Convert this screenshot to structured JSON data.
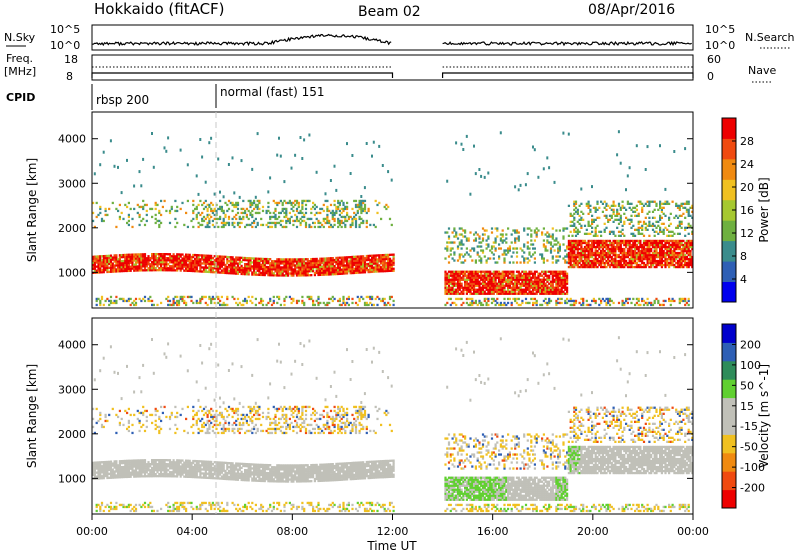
{
  "header": {
    "title": "Hokkaido (fitACF)",
    "beam": "Beam 02",
    "date": "08/Apr/2016"
  },
  "strips": {
    "nsky_label": "N.Sky",
    "nsky_ticks": [
      "10^5",
      "10^0"
    ],
    "nsearch_label": "N.Search",
    "nsearch_ticks": [
      "10^5",
      "10^0"
    ],
    "freq_label": "Freq.",
    "freq_unit": "[MHz]",
    "freq_ticks": [
      "18",
      "8"
    ],
    "nave_label": "Nave",
    "nave_ticks": [
      "60",
      "0"
    ],
    "cpid_label": "CPID",
    "cpid_entries": [
      {
        "name": "rbsp 200",
        "start_hour": 0
      },
      {
        "name": "normal (fast) 151",
        "start_hour": 5
      }
    ]
  },
  "colors": {
    "power_scale": [
      "#0000ee",
      "#2e5fb5",
      "#3a8c8c",
      "#6eb040",
      "#a6c830",
      "#f0c020",
      "#f08a10",
      "#f04a10",
      "#ee0000"
    ],
    "velocity_scale": [
      "#ee0000",
      "#f04a10",
      "#f08a10",
      "#f0c020",
      "#c0c0b8",
      "#c0c0b8",
      "#60d030",
      "#2e8c5a",
      "#2e5fb5",
      "#0000cc"
    ]
  },
  "chart_data": [
    {
      "type": "heatmap",
      "name": "power",
      "ylabel": "Slant Range [km]",
      "xlabel": "Time UT",
      "xlim_hours": [
        0,
        24
      ],
      "ylim": [
        200,
        4600
      ],
      "y_ticks": [
        1000,
        2000,
        3000,
        4000
      ],
      "x_tick_labels": [
        "00:00",
        "04:00",
        "08:00",
        "12:00",
        "16:00",
        "20:00",
        "00:00"
      ],
      "data_gaps_hours": [
        [
          12,
          14
        ]
      ],
      "colorbar_label": "Power [dB]",
      "colorbar_ticks": [
        "28",
        "24",
        "20",
        "16",
        "12",
        "8",
        "4"
      ],
      "colorbar_range": [
        0,
        32
      ]
    },
    {
      "type": "heatmap",
      "name": "velocity",
      "ylabel": "Slant Range [km]",
      "xlabel": "Time UT",
      "xlim_hours": [
        0,
        24
      ],
      "ylim": [
        200,
        4600
      ],
      "y_ticks": [
        1000,
        2000,
        3000,
        4000
      ],
      "x_tick_labels": [
        "00:00",
        "04:00",
        "08:00",
        "12:00",
        "16:00",
        "20:00",
        "00:00"
      ],
      "data_gaps_hours": [
        [
          12,
          14
        ]
      ],
      "colorbar_label": "Velocity [m s^-1]",
      "colorbar_ticks": [
        "200",
        "100",
        "50",
        "15",
        "-15",
        "-50",
        "-100",
        "-200"
      ],
      "colorbar_range": [
        -250,
        250
      ]
    }
  ],
  "xaxis": {
    "tick_labels": [
      "00:00",
      "04:00",
      "08:00",
      "12:00",
      "16:00",
      "20:00",
      "00:00"
    ],
    "title": "Time UT"
  }
}
